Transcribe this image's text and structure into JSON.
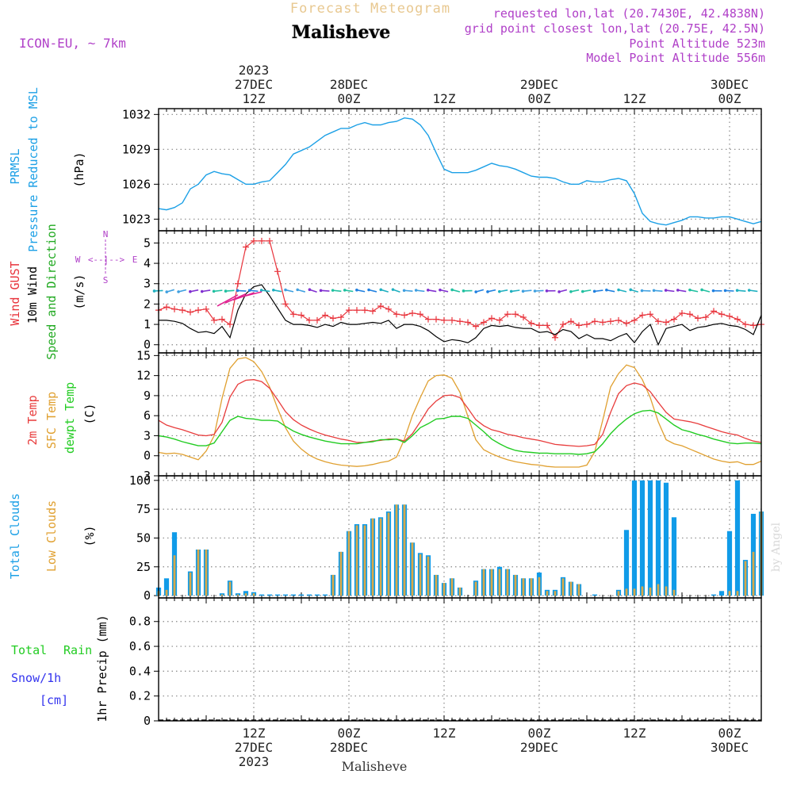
{
  "header": {
    "product": "Forecast Meteogram",
    "model": "ICON-EU, ~ 7km",
    "location": "Malisheve",
    "requested": "requested lon,lat (20.7430E, 42.4838N)",
    "grid_point": "grid point closest lon,lat (20.75E, 42.5N)",
    "point_altitude": "Point Altitude 523m",
    "model_altitude": "Model Point Altitude 556m",
    "watermark": "by Angel",
    "footer_location": "Malisheve"
  },
  "colors": {
    "pressure": "#1ca0e6",
    "gust": "#e8343c",
    "wind": "#000000",
    "dir_label": "#22aa22",
    "temp": "#e83c3c",
    "sfc": "#e0a030",
    "dewpt": "#22cc22",
    "total_clouds": "#109be8",
    "low_clouds": "#d8a848",
    "rain": "#22cc22",
    "snow": "#3333ee",
    "meta": "#b040c8",
    "axis": "#000000",
    "grid": "#888888"
  },
  "time_axis": {
    "top_labels": [
      {
        "h": 12,
        "lines": [
          "2023",
          "27DEC",
          "12Z"
        ]
      },
      {
        "h": 24,
        "lines": [
          "28DEC",
          "00Z"
        ]
      },
      {
        "h": 36,
        "lines": [
          "12Z"
        ]
      },
      {
        "h": 48,
        "lines": [
          "29DEC",
          "00Z"
        ]
      },
      {
        "h": 60,
        "lines": [
          "12Z"
        ]
      },
      {
        "h": 72,
        "lines": [
          "30DEC",
          "00Z"
        ]
      }
    ],
    "bottom_labels": [
      {
        "h": 12,
        "lines": [
          "12Z",
          "27DEC",
          "2023"
        ]
      },
      {
        "h": 24,
        "lines": [
          "00Z",
          "28DEC"
        ]
      },
      {
        "h": 36,
        "lines": [
          "12Z"
        ]
      },
      {
        "h": 48,
        "lines": [
          "00Z",
          "29DEC"
        ]
      },
      {
        "h": 60,
        "lines": [
          "12Z"
        ]
      },
      {
        "h": 72,
        "lines": [
          "00Z",
          "30DEC"
        ]
      }
    ]
  },
  "panels": {
    "pressure": {
      "labels": [
        "PRMSL",
        "Pressure Reduced to MSL"
      ],
      "unit": "(hPa)",
      "ticks": [
        "1023",
        "1026",
        "1029",
        "1032"
      ]
    },
    "wind": {
      "labels": [
        "Wind GUST",
        "10m Wind",
        "Speed and Direction"
      ],
      "unit": "(m/s)",
      "ticks": [
        "0",
        "1",
        "2",
        "3",
        "4",
        "5"
      ],
      "compass": {
        "n": "N",
        "s": "S",
        "w": "W",
        "e": "E",
        "ns": "^\n|\nv",
        "we": "<--|-->"
      }
    },
    "temp": {
      "labels": [
        "2m Temp",
        "SFC Temp",
        "dewpt Temp"
      ],
      "unit": "(C)",
      "ticks": [
        "-3",
        "0",
        "3",
        "6",
        "9",
        "12",
        "15"
      ]
    },
    "clouds": {
      "labels": [
        "Total Clouds",
        "Low Clouds"
      ],
      "unit": "(%)",
      "ticks": [
        "0",
        "25",
        "50",
        "75",
        "100"
      ]
    },
    "precip": {
      "labels": [
        "Total",
        "Rain",
        "Snow/1h",
        "[cm]"
      ],
      "unit": "1hr Precip (mm)",
      "ticks": [
        "0",
        "0.2",
        "0.4",
        "0.6",
        "0.8"
      ]
    }
  },
  "chart_data": [
    {
      "type": "line",
      "name": "PRMSL",
      "ylabel": "(hPa)",
      "ylim": [
        1022,
        1032.5
      ],
      "x": [
        0,
        1,
        2,
        3,
        4,
        5,
        6,
        7,
        8,
        9,
        10,
        11,
        12,
        13,
        14,
        15,
        16,
        17,
        18,
        19,
        20,
        21,
        22,
        23,
        24,
        25,
        26,
        27,
        28,
        29,
        30,
        31,
        32,
        33,
        34,
        35,
        36,
        37,
        38,
        39,
        40,
        41,
        42,
        43,
        44,
        45,
        46,
        47,
        48,
        49,
        50,
        51,
        52,
        53,
        54,
        55,
        56,
        57,
        58,
        59,
        60,
        61,
        62,
        63,
        64,
        65,
        66,
        67,
        68,
        69,
        70,
        71,
        72,
        73,
        74,
        75,
        76
      ],
      "series": [
        {
          "name": "PRMSL",
          "values": [
            1023.9,
            1023.8,
            1024.0,
            1024.4,
            1025.6,
            1026.0,
            1026.8,
            1027.1,
            1026.9,
            1026.8,
            1026.4,
            1026.0,
            1026.0,
            1026.2,
            1026.3,
            1027.0,
            1027.7,
            1028.6,
            1028.9,
            1029.2,
            1029.7,
            1030.2,
            1030.5,
            1030.8,
            1030.8,
            1031.1,
            1031.3,
            1031.1,
            1031.1,
            1031.3,
            1031.4,
            1031.7,
            1031.6,
            1031.1,
            1030.2,
            1028.7,
            1027.3,
            1027.0,
            1027.0,
            1027.0,
            1027.2,
            1027.5,
            1027.8,
            1027.6,
            1027.5,
            1027.3,
            1027.0,
            1026.7,
            1026.6,
            1026.6,
            1026.5,
            1026.2,
            1026.0,
            1026.0,
            1026.3,
            1026.2,
            1026.2,
            1026.4,
            1026.5,
            1026.3,
            1025.2,
            1023.5,
            1022.8,
            1022.6,
            1022.5,
            1022.7,
            1022.9,
            1023.2,
            1023.2,
            1023.1,
            1023.1,
            1023.2,
            1023.2,
            1023.0,
            1022.8,
            1022.6,
            1022.8
          ]
        }
      ]
    },
    {
      "type": "line",
      "name": "Wind",
      "ylabel": "(m/s)",
      "ylim": [
        -0.4,
        5.6
      ],
      "x": [
        0,
        1,
        2,
        3,
        4,
        5,
        6,
        7,
        8,
        9,
        10,
        11,
        12,
        13,
        14,
        15,
        16,
        17,
        18,
        19,
        20,
        21,
        22,
        23,
        24,
        25,
        26,
        27,
        28,
        29,
        30,
        31,
        32,
        33,
        34,
        35,
        36,
        37,
        38,
        39,
        40,
        41,
        42,
        43,
        44,
        45,
        46,
        47,
        48,
        49,
        50,
        51,
        52,
        53,
        54,
        55,
        56,
        57,
        58,
        59,
        60,
        61,
        62,
        63,
        64,
        65,
        66,
        67,
        68,
        69,
        70,
        71,
        72,
        73,
        74,
        75,
        76
      ],
      "series": [
        {
          "name": "Wind GUST",
          "values": [
            1.7,
            1.85,
            1.75,
            1.7,
            1.6,
            1.7,
            1.75,
            1.2,
            1.25,
            1.0,
            3.0,
            4.8,
            5.1,
            5.1,
            5.1,
            3.6,
            2.0,
            1.5,
            1.45,
            1.2,
            1.2,
            1.45,
            1.3,
            1.35,
            1.7,
            1.7,
            1.7,
            1.65,
            1.9,
            1.75,
            1.5,
            1.45,
            1.55,
            1.5,
            1.25,
            1.25,
            1.2,
            1.2,
            1.15,
            1.1,
            0.9,
            1.1,
            1.3,
            1.2,
            1.5,
            1.5,
            1.35,
            1.05,
            0.95,
            0.95,
            0.35,
            1.0,
            1.15,
            0.95,
            1.0,
            1.15,
            1.1,
            1.15,
            1.2,
            1.05,
            1.2,
            1.45,
            1.5,
            1.15,
            1.1,
            1.25,
            1.55,
            1.5,
            1.3,
            1.35,
            1.65,
            1.5,
            1.4,
            1.25,
            1.0,
            0.95,
            1.0
          ]
        },
        {
          "name": "10m Wind",
          "values": [
            1.2,
            1.2,
            1.15,
            1.05,
            0.8,
            0.6,
            0.65,
            0.55,
            0.9,
            0.35,
            1.7,
            2.5,
            2.85,
            2.95,
            2.4,
            1.8,
            1.2,
            1.0,
            1.0,
            0.95,
            0.85,
            1.0,
            0.9,
            1.1,
            1.0,
            1.0,
            1.05,
            1.1,
            1.05,
            1.2,
            0.8,
            1.0,
            1.0,
            0.9,
            0.7,
            0.4,
            0.15,
            0.25,
            0.2,
            0.1,
            0.35,
            0.8,
            0.95,
            0.9,
            0.95,
            0.85,
            0.8,
            0.8,
            0.6,
            0.65,
            0.5,
            0.75,
            0.65,
            0.3,
            0.5,
            0.3,
            0.3,
            0.2,
            0.4,
            0.55,
            0.1,
            0.65,
            1.0,
            0.0,
            0.8,
            0.9,
            1.0,
            0.7,
            0.85,
            0.9,
            1.0,
            1.05,
            0.95,
            0.9,
            0.75,
            0.5,
            1.45
          ]
        }
      ]
    },
    {
      "type": "line",
      "name": "Temperature",
      "ylabel": "(C)",
      "ylim": [
        -3,
        15.4
      ],
      "x": [
        0,
        1,
        2,
        3,
        4,
        5,
        6,
        7,
        8,
        9,
        10,
        11,
        12,
        13,
        14,
        15,
        16,
        17,
        18,
        19,
        20,
        21,
        22,
        23,
        24,
        25,
        26,
        27,
        28,
        29,
        30,
        31,
        32,
        33,
        34,
        35,
        36,
        37,
        38,
        39,
        40,
        41,
        42,
        43,
        44,
        45,
        46,
        47,
        48,
        49,
        50,
        51,
        52,
        53,
        54,
        55,
        56,
        57,
        58,
        59,
        60,
        61,
        62,
        63,
        64,
        65,
        66,
        67,
        68,
        69,
        70,
        71,
        72,
        73,
        74,
        75,
        76
      ],
      "series": [
        {
          "name": "2m Temp",
          "values": [
            5.3,
            4.6,
            4.2,
            3.9,
            3.5,
            3.1,
            3.0,
            3.2,
            5.0,
            8.8,
            10.7,
            11.3,
            11.4,
            11.1,
            10.1,
            8.4,
            6.6,
            5.4,
            4.6,
            4.0,
            3.5,
            3.1,
            2.8,
            2.5,
            2.3,
            2.0,
            2.0,
            2.2,
            2.3,
            2.5,
            2.5,
            2.2,
            3.3,
            5.1,
            7.0,
            8.2,
            9.0,
            9.1,
            8.7,
            7.1,
            5.4,
            4.5,
            3.9,
            3.6,
            3.2,
            3.0,
            2.7,
            2.5,
            2.3,
            2.0,
            1.7,
            1.6,
            1.5,
            1.4,
            1.5,
            1.7,
            3.2,
            6.5,
            9.3,
            10.5,
            10.9,
            10.6,
            9.6,
            8.0,
            6.5,
            5.5,
            5.3,
            5.1,
            4.8,
            4.4,
            4.0,
            3.6,
            3.3,
            3.1,
            2.6,
            2.2,
            2.0
          ]
        },
        {
          "name": "SFC Temp",
          "values": [
            0.5,
            0.3,
            0.4,
            0.2,
            -0.2,
            -0.6,
            0.7,
            3.0,
            8.6,
            13.1,
            14.5,
            14.7,
            14.1,
            12.6,
            10.3,
            7.1,
            4.2,
            2.2,
            1.0,
            0.1,
            -0.5,
            -0.9,
            -1.2,
            -1.4,
            -1.5,
            -1.6,
            -1.5,
            -1.3,
            -1.0,
            -0.8,
            -0.2,
            2.5,
            6.0,
            8.7,
            11.2,
            12.0,
            12.1,
            11.6,
            9.5,
            5.9,
            2.4,
            0.9,
            0.3,
            -0.2,
            -0.6,
            -0.9,
            -1.1,
            -1.3,
            -1.4,
            -1.6,
            -1.7,
            -1.7,
            -1.7,
            -1.7,
            -1.4,
            0.6,
            5.3,
            10.3,
            12.3,
            13.6,
            13.2,
            11.4,
            8.7,
            5.1,
            2.4,
            1.8,
            1.5,
            1.0,
            0.5,
            0.0,
            -0.5,
            -0.8,
            -1.0,
            -0.9,
            -1.3,
            -1.3,
            -0.8
          ]
        },
        {
          "name": "dewpt Temp",
          "values": [
            3.0,
            2.8,
            2.5,
            2.1,
            1.8,
            1.5,
            1.5,
            1.9,
            3.6,
            5.3,
            5.9,
            5.6,
            5.5,
            5.3,
            5.3,
            5.2,
            4.4,
            3.7,
            3.2,
            2.8,
            2.5,
            2.2,
            2.0,
            1.8,
            1.8,
            1.8,
            2.0,
            2.1,
            2.4,
            2.4,
            2.5,
            2.0,
            3.0,
            4.2,
            4.8,
            5.5,
            5.6,
            5.9,
            5.9,
            5.6,
            4.6,
            3.6,
            2.5,
            1.8,
            1.2,
            0.8,
            0.6,
            0.5,
            0.4,
            0.4,
            0.3,
            0.3,
            0.3,
            0.2,
            0.3,
            0.6,
            1.8,
            3.3,
            4.5,
            5.5,
            6.3,
            6.7,
            6.8,
            6.4,
            5.5,
            4.6,
            3.9,
            3.6,
            3.2,
            2.9,
            2.5,
            2.2,
            1.9,
            1.8,
            1.9,
            1.9,
            1.8
          ]
        }
      ]
    },
    {
      "type": "bar",
      "name": "Clouds",
      "ylabel": "(%)",
      "ylim": [
        -2,
        104
      ],
      "x": [
        0,
        1,
        2,
        3,
        4,
        5,
        6,
        7,
        8,
        9,
        10,
        11,
        12,
        13,
        14,
        15,
        16,
        17,
        18,
        19,
        20,
        21,
        22,
        23,
        24,
        25,
        26,
        27,
        28,
        29,
        30,
        31,
        32,
        33,
        34,
        35,
        36,
        37,
        38,
        39,
        40,
        41,
        42,
        43,
        44,
        45,
        46,
        47,
        48,
        49,
        50,
        51,
        52,
        53,
        54,
        55,
        56,
        57,
        58,
        59,
        60,
        61,
        62,
        63,
        64,
        65,
        66,
        67,
        68,
        69,
        70,
        71,
        72,
        73,
        74,
        75,
        76
      ],
      "series": [
        {
          "name": "Total Clouds",
          "values": [
            7,
            15,
            55,
            0,
            21,
            40,
            40,
            0,
            2,
            13,
            2,
            4,
            3,
            1,
            1,
            1,
            1,
            1,
            1,
            1,
            1,
            1,
            18,
            38,
            56,
            62,
            62,
            67,
            68,
            73,
            79,
            79,
            46,
            37,
            35,
            18,
            11,
            15,
            7,
            0,
            13,
            23,
            23,
            25,
            23,
            18,
            15,
            15,
            20,
            5,
            5,
            16,
            12,
            10,
            0,
            1,
            0,
            0,
            5,
            57,
            100,
            100,
            100,
            100,
            98,
            68,
            0,
            0,
            0,
            0,
            1,
            4,
            56,
            100,
            31,
            71,
            73
          ]
        },
        {
          "name": "Low Clouds",
          "values": [
            4,
            5,
            35,
            0,
            20,
            40,
            40,
            0,
            1,
            12,
            1,
            2,
            2,
            0,
            0,
            0,
            0,
            0,
            0,
            0,
            0,
            0,
            18,
            38,
            56,
            61,
            61,
            67,
            67,
            72,
            79,
            79,
            46,
            36,
            34,
            18,
            11,
            15,
            7,
            0,
            12,
            23,
            23,
            23,
            23,
            18,
            15,
            15,
            16,
            4,
            4,
            15,
            12,
            10,
            0,
            0,
            0,
            0,
            4,
            6,
            6,
            8,
            7,
            10,
            8,
            5,
            0,
            0,
            0,
            0,
            0,
            0,
            4,
            4,
            30,
            38,
            73
          ]
        }
      ]
    },
    {
      "type": "bar",
      "name": "Precipitation",
      "ylabel": "1hr Precip (mm)",
      "ylim": [
        0,
        0.99
      ],
      "x": [
        0,
        76
      ],
      "series": [
        {
          "name": "Rain",
          "values": [
            0,
            0
          ]
        },
        {
          "name": "Snow/1h",
          "values": [
            0,
            0
          ]
        }
      ]
    }
  ]
}
